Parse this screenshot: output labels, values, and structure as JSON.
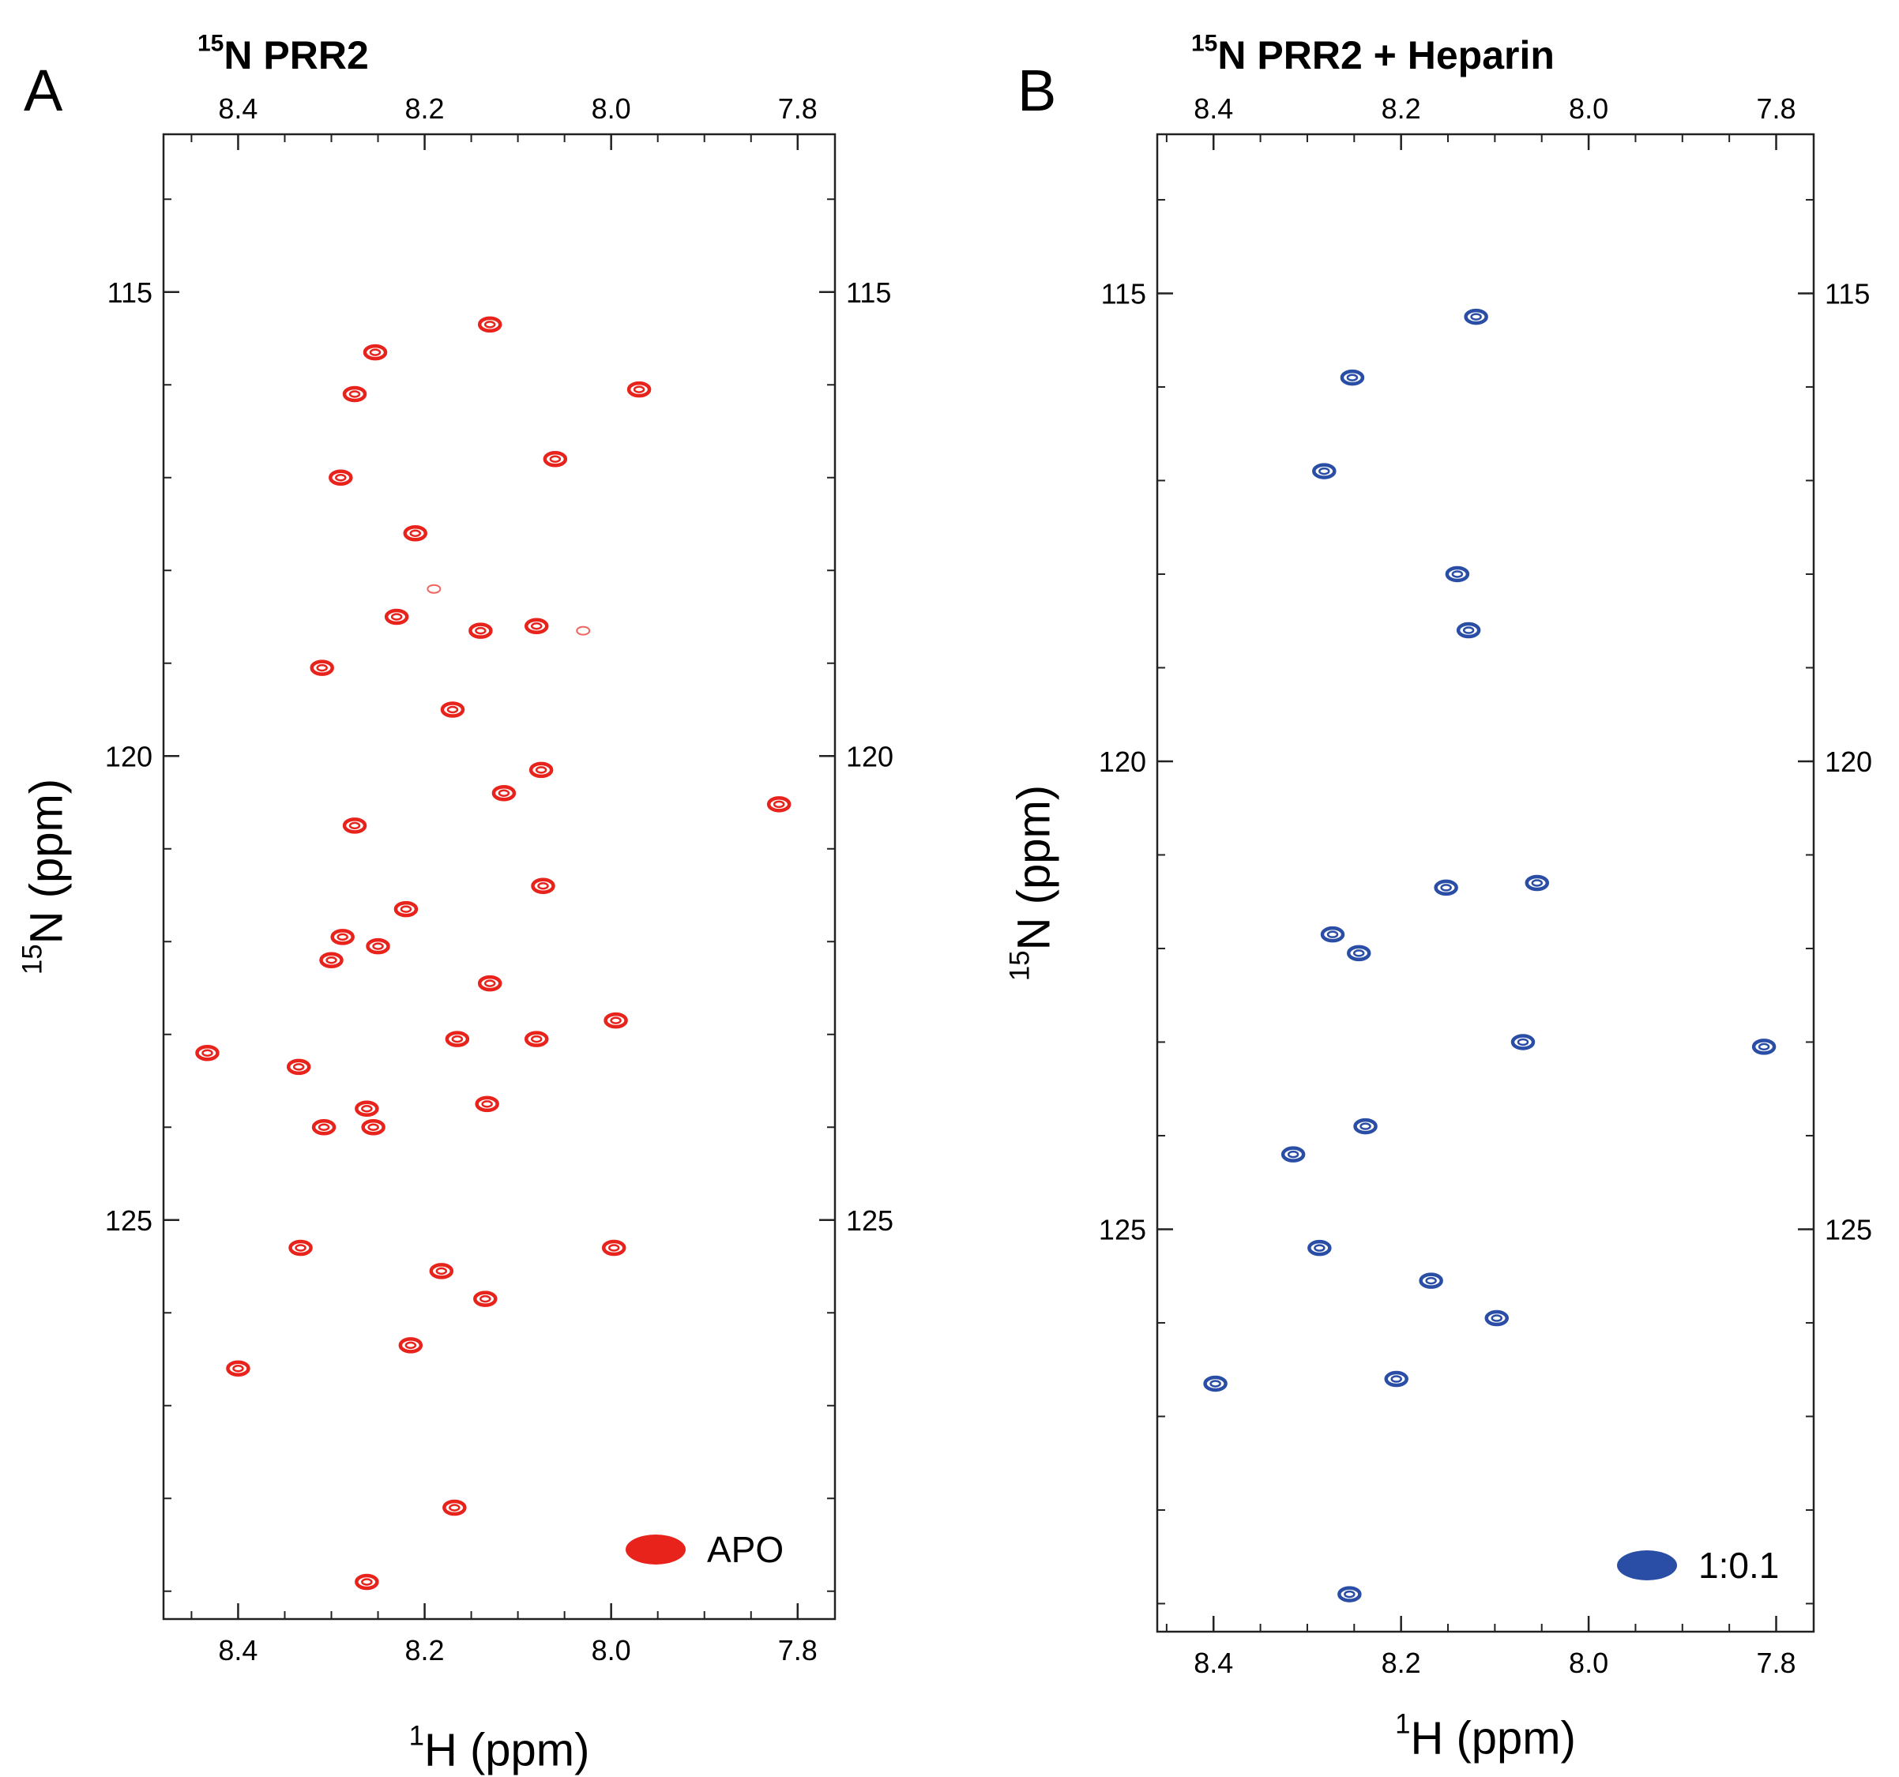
{
  "chart_data": [
    {
      "type": "scatter",
      "panel_letter": "A",
      "title_sup": "15",
      "title_rest": "N PRR2",
      "xlabel_sup": "1",
      "xlabel_rest": "H (ppm)",
      "ylabel_sup": "15",
      "ylabel_rest": "N (ppm)",
      "x_range": [
        8.48,
        7.76
      ],
      "y_range": [
        113.3,
        129.3
      ],
      "x_ticks": [
        8.4,
        8.2,
        8.0,
        7.8
      ],
      "x_tick_labels": [
        "8.4",
        "8.2",
        "8.0",
        "7.8"
      ],
      "y_ticks": [
        115,
        120,
        125
      ],
      "y_tick_labels": [
        "115",
        "120",
        "125"
      ],
      "legend": "APO",
      "color": "#e8231c",
      "points": [
        [
          8.13,
          115.35
        ],
        [
          8.253,
          115.65
        ],
        [
          7.97,
          116.05
        ],
        [
          8.275,
          116.1
        ],
        [
          8.06,
          116.8
        ],
        [
          8.29,
          117.0
        ],
        [
          8.21,
          117.6
        ],
        [
          8.23,
          118.5
        ],
        [
          8.14,
          118.65
        ],
        [
          8.08,
          118.6
        ],
        [
          8.31,
          119.05
        ],
        [
          8.17,
          119.5
        ],
        [
          8.075,
          120.15
        ],
        [
          8.115,
          120.4
        ],
        [
          7.82,
          120.52
        ],
        [
          8.275,
          120.75
        ],
        [
          8.073,
          121.4
        ],
        [
          8.22,
          121.65
        ],
        [
          8.288,
          121.95
        ],
        [
          8.25,
          122.05
        ],
        [
          8.3,
          122.2
        ],
        [
          8.13,
          122.45
        ],
        [
          7.995,
          122.85
        ],
        [
          8.165,
          123.05
        ],
        [
          8.08,
          123.05
        ],
        [
          8.433,
          123.2
        ],
        [
          8.335,
          123.35
        ],
        [
          8.262,
          123.8
        ],
        [
          8.133,
          123.75
        ],
        [
          8.308,
          124.0
        ],
        [
          8.255,
          124.0
        ],
        [
          8.333,
          125.3
        ],
        [
          7.997,
          125.3
        ],
        [
          8.182,
          125.55
        ],
        [
          8.135,
          125.85
        ],
        [
          8.215,
          126.35
        ],
        [
          8.4,
          126.6
        ],
        [
          8.168,
          128.1
        ],
        [
          8.262,
          128.9
        ]
      ],
      "faint_points": [
        [
          8.19,
          118.2
        ],
        [
          8.03,
          118.65
        ]
      ]
    },
    {
      "type": "scatter",
      "panel_letter": "B",
      "title_sup": "15",
      "title_rest": "N PRR2 + Heparin",
      "xlabel_sup": "1",
      "xlabel_rest": "H (ppm)",
      "ylabel_sup": "15",
      "ylabel_rest": "N (ppm)",
      "x_range": [
        8.46,
        7.76
      ],
      "y_range": [
        113.3,
        129.3
      ],
      "x_ticks": [
        8.4,
        8.2,
        8.0,
        7.8
      ],
      "x_tick_labels": [
        "8.4",
        "8.2",
        "8.0",
        "7.8"
      ],
      "y_ticks": [
        115,
        120,
        125
      ],
      "y_tick_labels": [
        "115",
        "120",
        "125"
      ],
      "legend": "1:0.1",
      "color": "#2a4ea6",
      "points": [
        [
          8.12,
          115.25
        ],
        [
          8.252,
          115.9
        ],
        [
          8.282,
          116.9
        ],
        [
          8.14,
          118.0
        ],
        [
          8.128,
          118.6
        ],
        [
          8.152,
          121.35
        ],
        [
          8.055,
          121.3
        ],
        [
          8.273,
          121.85
        ],
        [
          8.245,
          122.05
        ],
        [
          8.07,
          123.0
        ],
        [
          7.813,
          123.05
        ],
        [
          8.238,
          123.9
        ],
        [
          8.315,
          124.2
        ],
        [
          8.287,
          125.2
        ],
        [
          8.168,
          125.55
        ],
        [
          8.098,
          125.95
        ],
        [
          8.205,
          126.6
        ],
        [
          8.398,
          126.65
        ],
        [
          8.255,
          128.9
        ]
      ],
      "faint_points": []
    }
  ]
}
